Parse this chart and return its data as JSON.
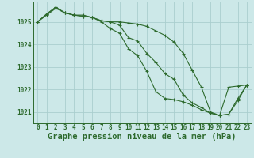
{
  "title": "Graphe pression niveau de la mer (hPa)",
  "x": [
    0,
    1,
    2,
    3,
    4,
    5,
    6,
    7,
    8,
    9,
    10,
    11,
    12,
    13,
    14,
    15,
    16,
    17,
    18,
    19,
    20,
    21,
    22,
    23
  ],
  "line1": [
    1025.0,
    1025.3,
    1025.6,
    1025.4,
    1025.3,
    1025.3,
    1025.2,
    1025.0,
    1024.7,
    1024.5,
    1023.8,
    1023.5,
    1022.8,
    1021.9,
    1021.6,
    1021.55,
    1021.45,
    1021.3,
    1021.1,
    1020.95,
    1020.85,
    1020.9,
    1021.6,
    1022.2
  ],
  "line2": [
    1025.0,
    1025.35,
    1025.65,
    1025.4,
    1025.3,
    1025.25,
    1025.2,
    1025.05,
    1025.0,
    1024.85,
    1024.3,
    1024.15,
    1023.6,
    1023.2,
    1022.7,
    1022.45,
    1021.75,
    1021.4,
    1021.2,
    1020.95,
    1020.85,
    1020.9,
    1021.5,
    1022.2
  ],
  "line3": [
    1025.0,
    1025.35,
    1025.65,
    1025.4,
    1025.3,
    1025.25,
    1025.2,
    1025.05,
    1025.0,
    1025.0,
    1024.95,
    1024.9,
    1024.8,
    1024.6,
    1024.4,
    1024.1,
    1023.6,
    1022.85,
    1022.1,
    1021.0,
    1020.85,
    1022.1,
    1022.15,
    1022.2
  ],
  "line_color": "#2d6a2d",
  "bg_color": "#cce8e8",
  "grid_color": "#aacece",
  "ylim": [
    1020.5,
    1025.9
  ],
  "yticks": [
    1021,
    1022,
    1023,
    1024,
    1025
  ],
  "xticks": [
    0,
    1,
    2,
    3,
    4,
    5,
    6,
    7,
    8,
    9,
    10,
    11,
    12,
    13,
    14,
    15,
    16,
    17,
    18,
    19,
    20,
    21,
    22,
    23
  ],
  "title_fontsize": 7.5,
  "tick_fontsize": 5.5,
  "marker": "+",
  "markersize": 3,
  "linewidth": 0.8,
  "markeredgewidth": 0.8
}
